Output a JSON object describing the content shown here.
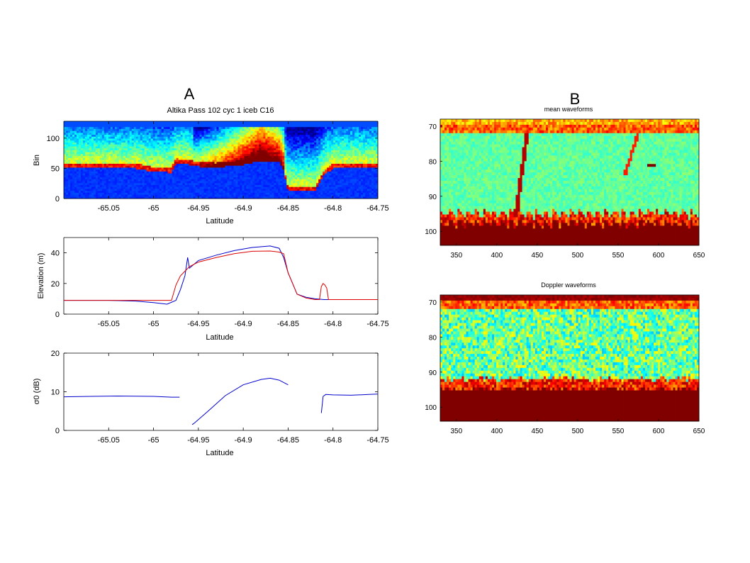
{
  "figure": {
    "label_a": "A",
    "label_b": "B",
    "title_a": "Altika Pass 102 cyc 1 iceb C16"
  },
  "colors": {
    "jet_dark_blue": "#00008f",
    "jet_blue": "#0000ff",
    "jet_cyan": "#00ffff",
    "jet_yellow": "#ffff00",
    "jet_red": "#ff0000",
    "jet_dark_red": "#800000",
    "line_blue": "#0000cc",
    "line_red": "#dd0000"
  },
  "chart_data": [
    {
      "id": "radargram",
      "type": "heatmap",
      "title": "",
      "xlabel": "Latitude",
      "ylabel": "Bin",
      "xlim": [
        -65.1,
        -64.75
      ],
      "ylim": [
        0,
        128
      ],
      "xticks": [
        -65.05,
        -65,
        -64.95,
        -64.9,
        -64.85,
        -64.8,
        -64.75
      ],
      "xtick_labels": [
        "-65.05",
        "-65",
        "-64.95",
        "-64.9",
        "-64.85",
        "-64.8",
        "-64.75"
      ],
      "yticks": [
        0,
        50,
        100
      ],
      "ytick_labels": [
        "0",
        "50",
        "100"
      ],
      "surface_bin_profile": {
        "lat": [
          -65.1,
          -65.02,
          -65.0,
          -64.98,
          -64.975,
          -64.96,
          -64.95,
          -64.93,
          -64.9,
          -64.88,
          -64.86,
          -64.855,
          -64.85,
          -64.835,
          -64.82,
          -64.81,
          -64.8,
          -64.75
        ],
        "bin": [
          52,
          52,
          46,
          45,
          60,
          58,
          55,
          53,
          58,
          64,
          62,
          48,
          14,
          14,
          14,
          40,
          52,
          52
        ]
      }
    },
    {
      "id": "elevation",
      "type": "line",
      "title": "",
      "xlabel": "Latitude",
      "ylabel": "Elevation (m)",
      "xlim": [
        -65.1,
        -64.75
      ],
      "ylim": [
        0,
        50
      ],
      "xticks": [
        -65.05,
        -65,
        -64.95,
        -64.9,
        -64.85,
        -64.8,
        -64.75
      ],
      "xtick_labels": [
        "-65.05",
        "-65",
        "-64.95",
        "-64.9",
        "-64.85",
        "-64.8",
        "-64.75"
      ],
      "yticks": [
        0,
        20,
        40
      ],
      "ytick_labels": [
        "0",
        "20",
        "40"
      ],
      "series": [
        {
          "color": "#0000cc",
          "x": [
            -65.1,
            -65.05,
            -65.02,
            -65.0,
            -64.985,
            -64.975,
            -64.97,
            -64.965,
            -64.962,
            -64.96,
            -64.95,
            -64.93,
            -64.91,
            -64.89,
            -64.87,
            -64.86,
            -64.855,
            -64.85,
            -64.845,
            -64.84,
            -64.83,
            -64.82,
            -64.81,
            -64.8,
            -64.78,
            -64.75
          ],
          "y": [
            9,
            9,
            8.5,
            7.5,
            6.5,
            9,
            16,
            25,
            37,
            30,
            35,
            38.5,
            41.5,
            43.5,
            44.5,
            43,
            37,
            27,
            20,
            13,
            11,
            10,
            9.5,
            9.5,
            9.5,
            9.5
          ]
        },
        {
          "color": "#dd0000",
          "x": [
            -65.1,
            -65.05,
            -65.0,
            -64.98,
            -64.975,
            -64.97,
            -64.965,
            -64.96,
            -64.95,
            -64.93,
            -64.91,
            -64.89,
            -64.87,
            -64.86,
            -64.855,
            -64.85,
            -64.845,
            -64.84,
            -64.83,
            -64.82,
            -64.815,
            -64.813,
            -64.811,
            -64.809,
            -64.807,
            -64.805,
            -64.8,
            -64.75
          ],
          "y": [
            9,
            9,
            9,
            9,
            19,
            25,
            28,
            31,
            34,
            37,
            39.5,
            41,
            41.2,
            40.5,
            39.5,
            27,
            20,
            13,
            10.5,
            9.5,
            9.5,
            18,
            20,
            19,
            17,
            9.5,
            9.5,
            9.5
          ]
        }
      ]
    },
    {
      "id": "sigma0",
      "type": "line",
      "title": "",
      "xlabel": "Latitude",
      "ylabel": "σ0 (dB)",
      "xlim": [
        -65.1,
        -64.75
      ],
      "ylim": [
        0,
        20
      ],
      "xticks": [
        -65.05,
        -65,
        -64.95,
        -64.9,
        -64.85,
        -64.8,
        -64.75
      ],
      "xtick_labels": [
        "-65.05",
        "-65",
        "-64.95",
        "-64.9",
        "-64.85",
        "-64.8",
        "-64.75"
      ],
      "yticks": [
        0,
        10,
        20
      ],
      "ytick_labels": [
        "0",
        "10",
        "20"
      ],
      "series": [
        {
          "color": "#0000cc",
          "segments": [
            {
              "x": [
                -65.1,
                -65.07,
                -65.04,
                -65.0,
                -64.98,
                -64.971
              ],
              "y": [
                8.7,
                8.8,
                8.9,
                8.8,
                8.6,
                8.6
              ]
            },
            {
              "x": [
                -64.957,
                -64.955,
                -64.94,
                -64.92,
                -64.9,
                -64.88,
                -64.87,
                -64.86,
                -64.85
              ],
              "y": [
                1.5,
                1.8,
                4.8,
                9.0,
                11.8,
                13.2,
                13.5,
                13.0,
                11.8
              ]
            },
            {
              "x": [
                -64.813,
                -64.811,
                -64.808,
                -64.8,
                -64.78,
                -64.76,
                -64.75
              ],
              "y": [
                4.5,
                8.8,
                9.3,
                9.2,
                9.1,
                9.3,
                9.4
              ]
            }
          ]
        }
      ]
    },
    {
      "id": "mean_waveforms",
      "type": "heatmap",
      "title": "mean waveforms",
      "xlabel": "",
      "ylabel": "",
      "xlim": [
        330,
        650
      ],
      "ylim": [
        104,
        68
      ],
      "xticks": [
        350,
        400,
        450,
        500,
        550,
        600,
        650
      ],
      "xtick_labels": [
        "350",
        "400",
        "450",
        "500",
        "550",
        "600",
        "650"
      ],
      "yticks": [
        70,
        80,
        90,
        100
      ],
      "ytick_labels": [
        "70",
        "80",
        "90",
        "100"
      ]
    },
    {
      "id": "doppler_waveforms",
      "type": "heatmap",
      "title": "Doppler waveforms",
      "xlabel": "",
      "ylabel": "",
      "xlim": [
        330,
        650
      ],
      "ylim": [
        104,
        68
      ],
      "xticks": [
        350,
        400,
        450,
        500,
        550,
        600,
        650
      ],
      "xtick_labels": [
        "350",
        "400",
        "450",
        "500",
        "550",
        "600",
        "650"
      ],
      "yticks": [
        70,
        80,
        90,
        100
      ],
      "ytick_labels": [
        "70",
        "80",
        "90",
        "100"
      ]
    }
  ]
}
